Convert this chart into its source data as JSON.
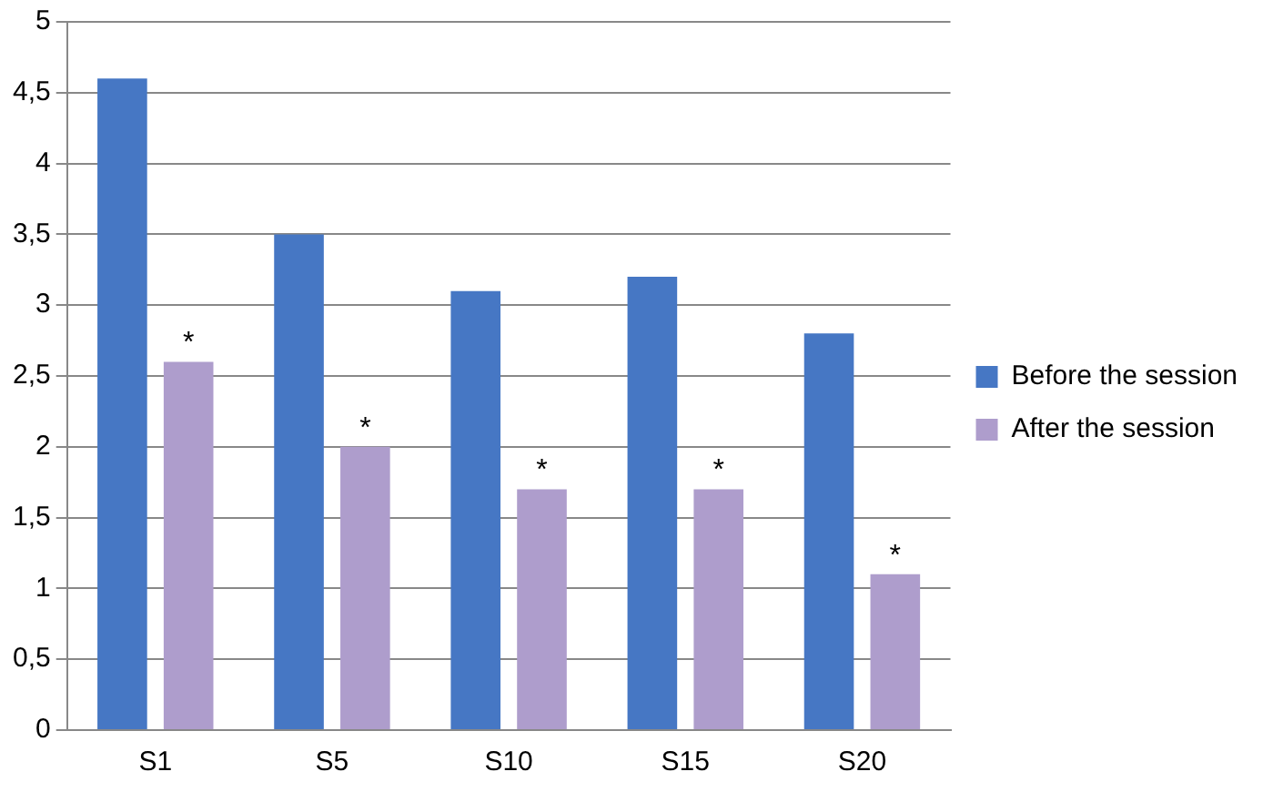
{
  "chart_data": {
    "type": "bar",
    "categories": [
      "S1",
      "S5",
      "S10",
      "S15",
      "S20"
    ],
    "series": [
      {
        "name": "Before the session",
        "color": "#4677c4",
        "values": [
          4.6,
          3.5,
          3.1,
          3.2,
          2.8
        ]
      },
      {
        "name": "After the session",
        "color": "#ae9dcc",
        "values": [
          2.6,
          2.0,
          1.7,
          1.7,
          1.1
        ]
      }
    ],
    "ylim": [
      0,
      5
    ],
    "yticks": [
      0,
      {
        "value": 0.5,
        "label": "0,5"
      },
      1,
      {
        "value": 1.5,
        "label": "1,5"
      },
      2,
      {
        "value": 2.5,
        "label": "2,5"
      },
      3,
      {
        "value": 3.5,
        "label": "3,5"
      },
      4,
      {
        "value": 4.5,
        "label": "4,5"
      },
      5
    ],
    "grid": "y",
    "legend": "right",
    "annotations": [
      {
        "text": "*",
        "x": "S1",
        "y": 2.6
      },
      {
        "text": "*",
        "x": "S5",
        "y": 2.0
      },
      {
        "text": "*",
        "x": "S10",
        "y": 1.7
      },
      {
        "text": "*",
        "x": "S15",
        "y": 1.7
      },
      {
        "text": "*",
        "x": "S20",
        "y": 1.1
      }
    ]
  }
}
